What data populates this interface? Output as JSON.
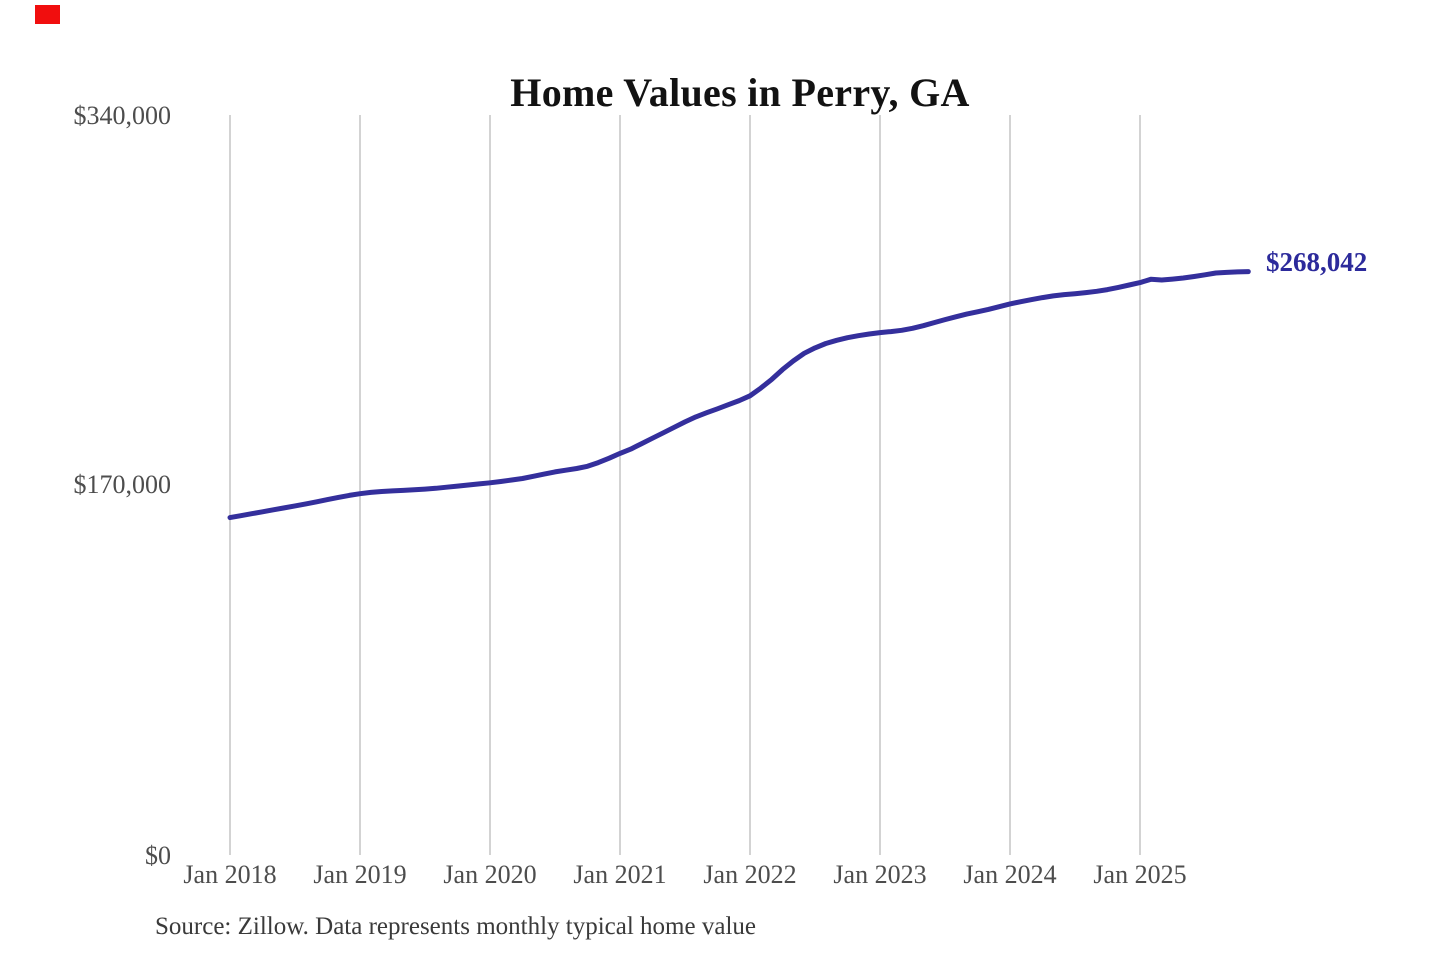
{
  "title": "Home Values in Perry, GA",
  "source_note": "Source: Zillow. Data represents monthly typical home value",
  "end_label": "$268,042",
  "colors": {
    "line": "#342F9C",
    "end_label_text": "#2C2A9B",
    "grid": "#c8c8c8",
    "axis_text": "#4d4d4d",
    "title_text": "#121212",
    "source_text": "#3a3a3a",
    "marker_red": "#f10e0e",
    "background": "#ffffff"
  },
  "chart_data": {
    "type": "line",
    "title": "Home Values in Perry, GA",
    "x_tick_labels": [
      "Jan 2018",
      "Jan 2019",
      "Jan 2020",
      "Jan 2021",
      "Jan 2022",
      "Jan 2023",
      "Jan 2024",
      "Jan 2025"
    ],
    "y_tick_labels": [
      "$0",
      "$170,000",
      "$340,000"
    ],
    "ylim": [
      0,
      340000
    ],
    "x_start": "Jan 2018",
    "x_interval": "monthly",
    "grid": "vertical-only",
    "legend": "none",
    "end_value": 268042,
    "series": [
      {
        "name": "Typical home value",
        "values": [
          155000,
          155900,
          156800,
          157700,
          158600,
          159500,
          160400,
          161300,
          162300,
          163300,
          164300,
          165200,
          166000,
          166600,
          167000,
          167300,
          167500,
          167800,
          168100,
          168500,
          169000,
          169500,
          170000,
          170500,
          171000,
          171600,
          172300,
          173000,
          174000,
          175000,
          176000,
          176800,
          177600,
          178600,
          180300,
          182300,
          184500,
          186500,
          189000,
          191500,
          194000,
          196500,
          199000,
          201300,
          203200,
          205000,
          206900,
          208800,
          211000,
          214500,
          218500,
          223000,
          227000,
          230500,
          233000,
          235000,
          236500,
          237700,
          238600,
          239400,
          240000,
          240500,
          241100,
          242000,
          243200,
          244600,
          246000,
          247300,
          248500,
          249600,
          250700,
          251900,
          253200,
          254200,
          255200,
          256100,
          256900,
          257500,
          257900,
          258400,
          259000,
          259800,
          260800,
          261900,
          263000,
          264500,
          264200,
          264600,
          265100,
          265800,
          266600,
          267400,
          267700,
          267900,
          268042
        ]
      }
    ]
  }
}
